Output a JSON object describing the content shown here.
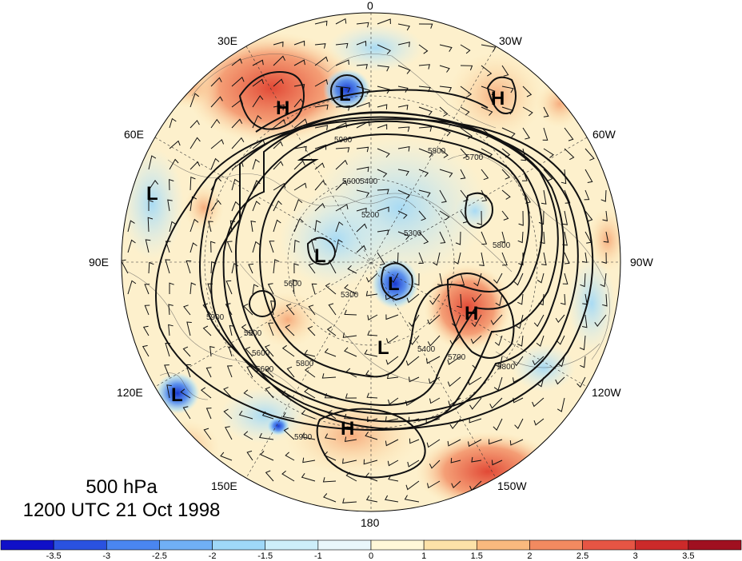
{
  "title": {
    "level": "500 hPa",
    "datetime": "1200 UTC 21 Oct 1998"
  },
  "longitude_labels": [
    {
      "text": "0",
      "lon": 0
    },
    {
      "text": "30W",
      "lon": -30
    },
    {
      "text": "60W",
      "lon": -60
    },
    {
      "text": "90W",
      "lon": -90
    },
    {
      "text": "120W",
      "lon": -120
    },
    {
      "text": "150W",
      "lon": -150
    },
    {
      "text": "180",
      "lon": 180
    },
    {
      "text": "150E",
      "lon": 150
    },
    {
      "text": "120E",
      "lon": 120
    },
    {
      "text": "90E",
      "lon": 90
    },
    {
      "text": "60E",
      "lon": 60
    },
    {
      "text": "30E",
      "lon": 30
    }
  ],
  "pressure_centers": [
    {
      "type": "H",
      "where": "north-central Europe"
    },
    {
      "type": "L",
      "where": "Scandinavia"
    },
    {
      "type": "H",
      "where": "North Atlantic"
    },
    {
      "type": "L",
      "where": "Central Asia"
    },
    {
      "type": "L",
      "where": "Siberia"
    },
    {
      "type": "L",
      "where": "Hudson Bay region"
    },
    {
      "type": "H",
      "where": "Pacific Northwest"
    },
    {
      "type": "L",
      "where": "Alaska / Bering"
    },
    {
      "type": "L",
      "where": "East Asia coast"
    },
    {
      "type": "H",
      "where": "Central North Pacific"
    }
  ],
  "contour_labels": [
    "5900",
    "5800",
    "5700",
    "5600",
    "5400",
    "5200",
    "5300",
    "5800",
    "5600",
    "5300",
    "5500",
    "5600",
    "5400",
    "5700",
    "5800",
    "5900",
    "5800",
    "5600",
    "5900"
  ],
  "colorbar": {
    "ticks": [
      "-3.5",
      "-3",
      "-2.5",
      "-2",
      "-1.5",
      "-1",
      "0",
      "1",
      "1.5",
      "2",
      "2.5",
      "3",
      "3.5"
    ],
    "colors": [
      "#1010c8",
      "#2a52e0",
      "#4a86f0",
      "#70b0f5",
      "#9fd8f8",
      "#cdeefa",
      "#eaf7fb",
      "#fff8d8",
      "#fde2a8",
      "#f9b97e",
      "#f28a60",
      "#e65544",
      "#cc2a2a",
      "#a01020"
    ]
  }
}
